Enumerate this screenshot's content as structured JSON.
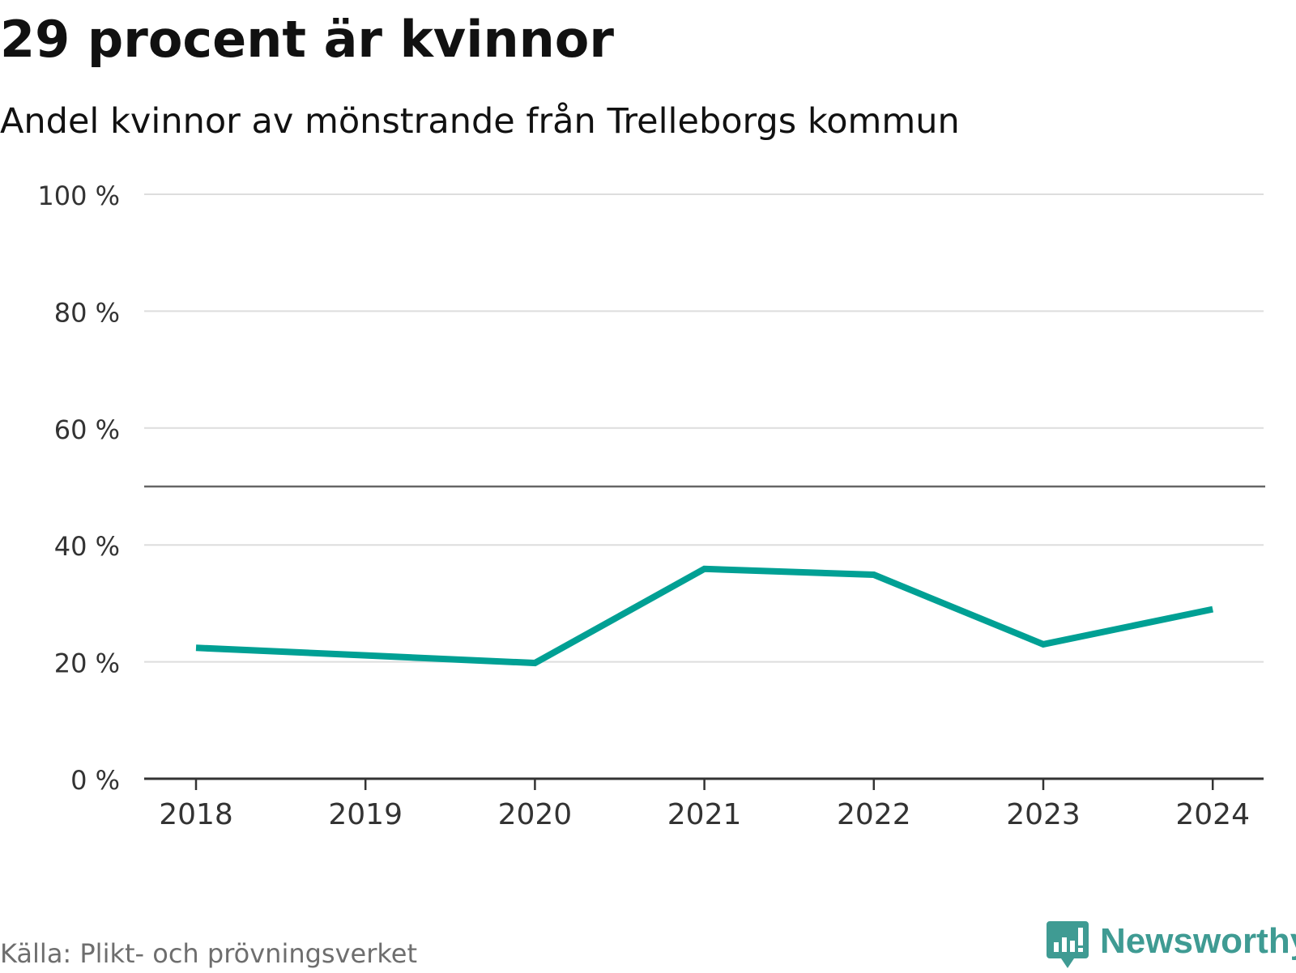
{
  "header": {
    "title": "29 procent är kvinnor",
    "subtitle": "Andel kvinnor av mönstrande från Trelleborgs kommun"
  },
  "footer": {
    "source": "Källa: Plikt- och prövningsverket",
    "brand": "Newsworthy",
    "brand_icon": "bar-chart-speech-bubble-icon",
    "brand_color": "#3f9b93"
  },
  "chart_data": {
    "type": "line",
    "title": "29 procent är kvinnor",
    "subtitle": "Andel kvinnor av mönstrande från Trelleborgs kommun",
    "x": [
      2018,
      2019,
      2020,
      2021,
      2022,
      2023,
      2024
    ],
    "x_tick_labels": [
      "2018",
      "2019",
      "2020",
      "2021",
      "2022",
      "2023",
      "2024"
    ],
    "series": [
      {
        "values": [
          22.4,
          21.1,
          19.8,
          35.9,
          34.9,
          23.0,
          29.0
        ],
        "color": "#00a094"
      }
    ],
    "ylim": [
      0,
      100
    ],
    "y_ticks": [
      0,
      20,
      40,
      60,
      80,
      100
    ],
    "y_tick_labels": [
      "0 %",
      "20 %",
      "40 %",
      "60 %",
      "80 %",
      "100 %"
    ],
    "reference_line": 50,
    "grid": true,
    "grid_color": "#dddddd",
    "axis_color": "#333333",
    "xlabel": "",
    "ylabel": ""
  }
}
